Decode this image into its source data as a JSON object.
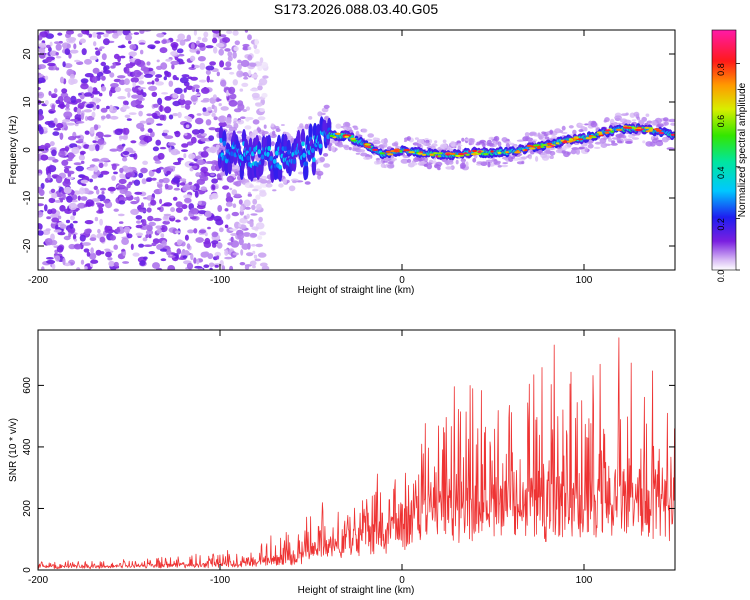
{
  "title": "S173.2026.088.03.40.G05",
  "chart_data": [
    {
      "type": "heatmap",
      "name": "spectrogram",
      "xlabel": "Height of straight line (km)",
      "ylabel": "Frequency (Hz)",
      "xlim": [
        -200,
        150
      ],
      "ylim": [
        -25,
        25
      ],
      "xticks": [
        -200,
        -100,
        0,
        100
      ],
      "yticks": [
        -20,
        -10,
        0,
        10,
        20
      ],
      "colorbar": {
        "label": "Normalized spectral amplitude",
        "range": [
          0,
          0.93
        ],
        "ticks": [
          0.0,
          0.2,
          0.4,
          0.6,
          0.8
        ]
      },
      "ridge": {
        "x": [
          -100,
          -80,
          -60,
          -45,
          -40,
          -30,
          -20,
          -10,
          0,
          10,
          20,
          30,
          40,
          50,
          60,
          70,
          80,
          90,
          100,
          110,
          120,
          130,
          140,
          150
        ],
        "y": [
          0,
          -1,
          -2,
          1,
          3,
          3,
          1,
          -1,
          0,
          -0.5,
          -1,
          -1,
          -0.5,
          -0.5,
          -0.5,
          0.5,
          1,
          2,
          2.5,
          3.5,
          4.5,
          4.5,
          4,
          3
        ]
      },
      "noise_region_x": [
        -200,
        -100
      ]
    },
    {
      "type": "line",
      "name": "snr",
      "xlabel": "Height of straight line (km)",
      "ylabel": "SNR (10 * v/v)",
      "xlim": [
        -200,
        150
      ],
      "ylim": [
        0,
        780
      ],
      "xticks": [
        -200,
        -100,
        0,
        100
      ],
      "yticks": [
        0,
        200,
        400,
        600
      ],
      "color": "#ee3333",
      "envelope": {
        "x": [
          -200,
          -150,
          -120,
          -100,
          -80,
          -60,
          -50,
          -40,
          -30,
          -20,
          -10,
          0,
          10,
          20,
          30,
          50,
          70,
          80,
          100,
          115,
          130,
          140,
          150
        ],
        "base": [
          10,
          12,
          15,
          18,
          25,
          40,
          60,
          80,
          100,
          110,
          130,
          160,
          190,
          200,
          200,
          220,
          230,
          230,
          230,
          240,
          260,
          240,
          220
        ],
        "peak": [
          30,
          35,
          50,
          60,
          90,
          140,
          200,
          250,
          260,
          280,
          300,
          350,
          420,
          600,
          650,
          700,
          700,
          720,
          700,
          750,
          760,
          650,
          600
        ]
      }
    }
  ]
}
